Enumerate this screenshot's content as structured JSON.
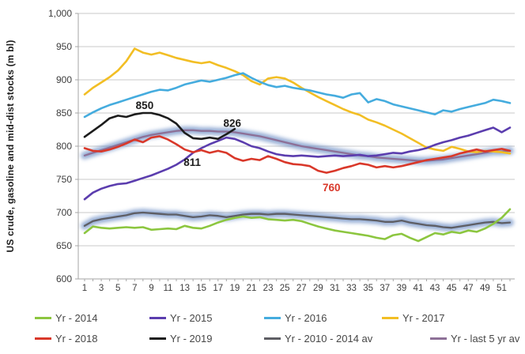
{
  "chart_data": {
    "type": "line",
    "title": "",
    "xlabel": "",
    "ylabel": "US crude, gasoline and mid-dist stocks (m bl)",
    "ylim": [
      600,
      1000
    ],
    "grid": true,
    "legend_position": "bottom",
    "x_weeks": 52,
    "x_tick_labels": [
      "1",
      "3",
      "5",
      "7",
      "9",
      "11",
      "13",
      "15",
      "17",
      "19",
      "21",
      "23",
      "25",
      "27",
      "29",
      "31",
      "33",
      "35",
      "37",
      "39",
      "41",
      "43",
      "45",
      "47",
      "49",
      "51"
    ],
    "y_tick_values": [
      600,
      650,
      700,
      750,
      800,
      850,
      900,
      950,
      1000
    ],
    "y_tick_labels": [
      "600",
      "650",
      "700",
      "750",
      "800",
      "850",
      "900",
      "950",
      "1,000"
    ],
    "glow_color": "#5d82be",
    "series": [
      {
        "name": "Yr - 2014",
        "color": "#8cc63f",
        "glow": false,
        "start_week": 1,
        "values": [
          669,
          679,
          677,
          676,
          677,
          678,
          677,
          678,
          674,
          675,
          676,
          675,
          680,
          677,
          676,
          680,
          685,
          689,
          692,
          694,
          692,
          693,
          690,
          689,
          688,
          689,
          687,
          683,
          679,
          676,
          673,
          671,
          669,
          667,
          665,
          662,
          660,
          666,
          668,
          662,
          657,
          663,
          669,
          667,
          671,
          669,
          673,
          671,
          676,
          683,
          692,
          705
        ]
      },
      {
        "name": "Yr - 2015",
        "color": "#5b3dae",
        "glow": false,
        "start_week": 1,
        "values": [
          720,
          730,
          736,
          740,
          743,
          744,
          748,
          752,
          756,
          761,
          766,
          772,
          780,
          790,
          797,
          803,
          808,
          813,
          811,
          806,
          800,
          797,
          792,
          788,
          786,
          785,
          786,
          785,
          784,
          785,
          786,
          785,
          786,
          787,
          785,
          786,
          788,
          790,
          789,
          792,
          794,
          797,
          802,
          806,
          809,
          813,
          816,
          820,
          824,
          828,
          821,
          828
        ]
      },
      {
        "name": "Yr - 2016",
        "color": "#45acde",
        "glow": false,
        "start_week": 1,
        "values": [
          844,
          851,
          857,
          862,
          866,
          870,
          874,
          878,
          882,
          885,
          884,
          888,
          893,
          896,
          899,
          897,
          900,
          903,
          907,
          910,
          903,
          897,
          892,
          889,
          891,
          888,
          886,
          884,
          881,
          878,
          876,
          873,
          878,
          880,
          866,
          871,
          868,
          863,
          860,
          857,
          854,
          851,
          848,
          854,
          852,
          856,
          859,
          862,
          865,
          870,
          868,
          865
        ]
      },
      {
        "name": "Yr - 2017",
        "color": "#f2be24",
        "glow": false,
        "start_week": 1,
        "values": [
          878,
          888,
          896,
          904,
          914,
          928,
          947,
          941,
          938,
          941,
          937,
          933,
          930,
          927,
          925,
          927,
          922,
          918,
          913,
          907,
          898,
          893,
          902,
          904,
          902,
          896,
          888,
          881,
          874,
          868,
          862,
          856,
          851,
          847,
          840,
          836,
          831,
          825,
          819,
          812,
          805,
          798,
          795,
          793,
          799,
          796,
          792,
          791,
          793,
          792,
          791,
          789
        ]
      },
      {
        "name": "Yr - 2018",
        "color": "#d9382a",
        "glow": false,
        "start_week": 1,
        "values": [
          797,
          793,
          792,
          795,
          799,
          804,
          810,
          806,
          813,
          815,
          810,
          803,
          795,
          791,
          794,
          790,
          793,
          790,
          782,
          778,
          781,
          779,
          785,
          781,
          776,
          773,
          772,
          770,
          763,
          760,
          763,
          767,
          770,
          774,
          772,
          768,
          770,
          768,
          770,
          773,
          776,
          779,
          781,
          783,
          785,
          789,
          792,
          795,
          792,
          794,
          796,
          793
        ]
      },
      {
        "name": "Yr - 2019",
        "color": "#1c1c1c",
        "glow": false,
        "start_week": 1,
        "values": [
          814,
          823,
          832,
          842,
          846,
          844,
          848,
          850,
          850,
          847,
          842,
          834,
          820,
          812,
          811,
          813,
          811,
          818,
          826
        ]
      },
      {
        "name": "Yr - 2010 - 2014 av",
        "color": "#5e5e64",
        "glow": true,
        "start_week": 1,
        "values": [
          680,
          687,
          690,
          692,
          694,
          696,
          699,
          700,
          699,
          698,
          697,
          697,
          695,
          693,
          694,
          696,
          695,
          693,
          695,
          697,
          698,
          698,
          697,
          698,
          698,
          697,
          696,
          695,
          694,
          693,
          692,
          691,
          690,
          690,
          689,
          688,
          686,
          686,
          688,
          685,
          683,
          681,
          680,
          678,
          677,
          679,
          681,
          683,
          685,
          686,
          684,
          685
        ]
      },
      {
        "name": "Yr - last 5 yr av",
        "color": "#8d7097",
        "glow": true,
        "start_week": 1,
        "values": [
          786,
          790,
          794,
          798,
          802,
          806,
          810,
          814,
          817,
          819,
          821,
          823,
          824,
          824,
          823,
          823,
          822,
          822,
          821,
          819,
          817,
          815,
          812,
          809,
          806,
          803,
          800,
          798,
          796,
          794,
          792,
          790,
          788,
          786,
          785,
          783,
          782,
          781,
          780,
          779,
          778,
          778,
          779,
          780,
          782,
          784,
          786,
          788,
          790,
          792,
          792,
          793
        ]
      }
    ],
    "annotations": [
      {
        "text": "850",
        "week": 8.2,
        "value": 861,
        "color": "#1c1c1c"
      },
      {
        "text": "826",
        "week": 18.7,
        "value": 834,
        "color": "#1c1c1c"
      },
      {
        "text": "811",
        "week": 13.9,
        "value": 775,
        "color": "#1c1c1c"
      },
      {
        "text": "760",
        "week": 30.6,
        "value": 737,
        "color": "#d9382a"
      }
    ]
  },
  "legend": {
    "rows": [
      [
        "Yr - 2014",
        "Yr - 2015",
        "Yr - 2016",
        "Yr - 2017"
      ],
      [
        "Yr - 2018",
        "Yr - 2019",
        "Yr - 2010 - 2014 av",
        "Yr - last 5 yr av"
      ]
    ]
  }
}
